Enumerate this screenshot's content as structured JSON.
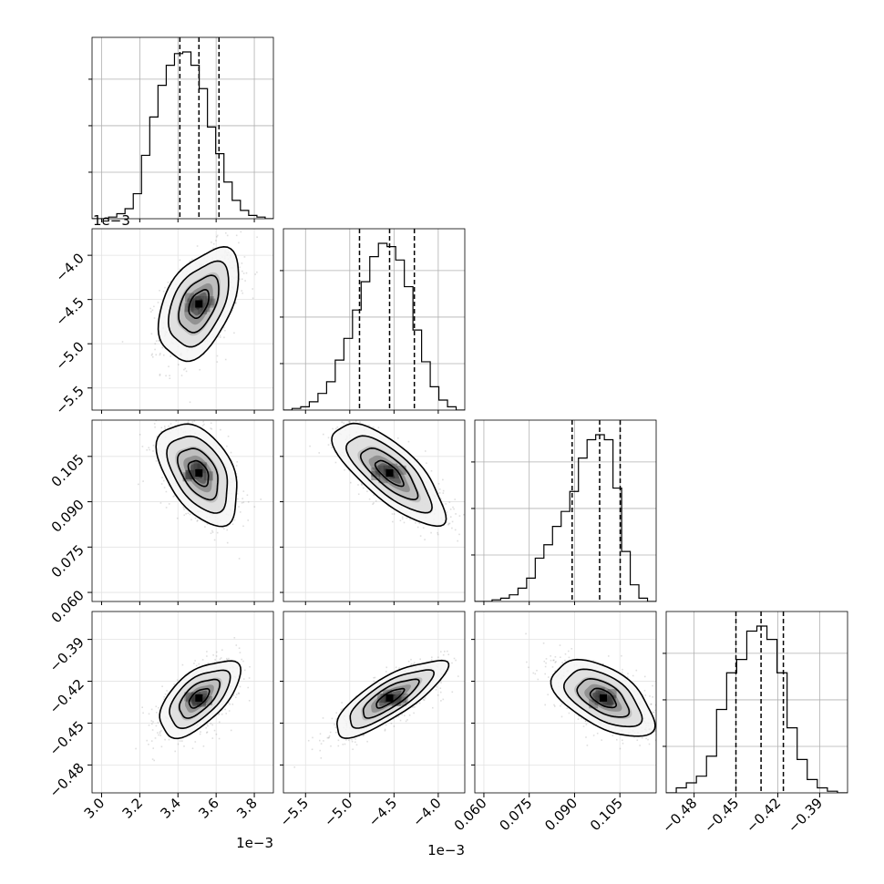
{
  "chart_data": {
    "type": "corner",
    "grid": true,
    "parameters": [
      {
        "range": [
          2.95,
          3.9
        ],
        "ticks": [
          3.0,
          3.2,
          3.4,
          3.6,
          3.8
        ],
        "tick_labels": [
          "3.0",
          "3.2",
          "3.4",
          "3.6",
          "3.8"
        ],
        "offset_text": "1e−3",
        "quantiles": [
          3.41,
          3.51,
          3.615
        ],
        "mean": 3.51,
        "sd": 0.1,
        "hist": [
          0,
          0,
          0.01,
          0.03,
          0.06,
          0.15,
          0.38,
          0.61,
          0.8,
          0.92,
          0.99,
          1.0,
          0.92,
          0.78,
          0.55,
          0.39,
          0.22,
          0.11,
          0.05,
          0.02,
          0.01,
          0
        ]
      },
      {
        "range": [
          -5.75,
          -3.7
        ],
        "ticks": [
          -5.5,
          -5.0,
          -4.5,
          -4.0
        ],
        "tick_labels": [
          "−5.5",
          "−5.0",
          "−4.5",
          "−4.0"
        ],
        "offset_text": "1e−3",
        "quantiles": [
          -4.89,
          -4.55,
          -4.27
        ],
        "mean": -4.55,
        "sd": 0.3,
        "hist": [
          0,
          0.01,
          0.02,
          0.05,
          0.1,
          0.17,
          0.3,
          0.43,
          0.6,
          0.77,
          0.92,
          1.0,
          0.98,
          0.9,
          0.74,
          0.48,
          0.29,
          0.14,
          0.06,
          0.02,
          0
        ]
      },
      {
        "range": [
          0.057,
          0.117
        ],
        "ticks": [
          0.06,
          0.075,
          0.09,
          0.105
        ],
        "tick_labels": [
          "0.060",
          "0.075",
          "0.090",
          "0.105"
        ],
        "offset_text": "",
        "quantiles": [
          0.0892,
          0.0983,
          0.1051
        ],
        "mean": 0.0995,
        "sd": 0.008,
        "hist": [
          0,
          0,
          0.01,
          0.02,
          0.04,
          0.08,
          0.14,
          0.26,
          0.34,
          0.45,
          0.54,
          0.66,
          0.86,
          0.97,
          1.0,
          0.97,
          0.68,
          0.3,
          0.1,
          0.02,
          0
        ]
      },
      {
        "range": [
          -0.5,
          -0.37
        ],
        "ticks": [
          -0.48,
          -0.45,
          -0.42,
          -0.39
        ],
        "tick_labels": [
          "−0.48",
          "−0.45",
          "−0.42",
          "−0.39"
        ],
        "offset_text": "",
        "quantiles": [
          -0.45,
          -0.432,
          -0.416
        ],
        "mean": -0.432,
        "sd": 0.013,
        "hist": [
          0,
          0.03,
          0.06,
          0.1,
          0.22,
          0.5,
          0.72,
          0.8,
          0.97,
          1.0,
          0.92,
          0.72,
          0.39,
          0.2,
          0.08,
          0.03,
          0.01,
          0
        ]
      }
    ],
    "correlations": [
      {
        "i": 1,
        "j": 0,
        "r": 0.45
      },
      {
        "i": 2,
        "j": 0,
        "r": -0.45
      },
      {
        "i": 2,
        "j": 1,
        "r": -0.75
      },
      {
        "i": 3,
        "j": 0,
        "r": 0.6
      },
      {
        "i": 3,
        "j": 1,
        "r": 0.8
      },
      {
        "i": 3,
        "j": 2,
        "r": -0.55
      }
    ],
    "contour_levels_sigma": [
      0.5,
      1.0,
      1.5,
      2.0
    ]
  }
}
